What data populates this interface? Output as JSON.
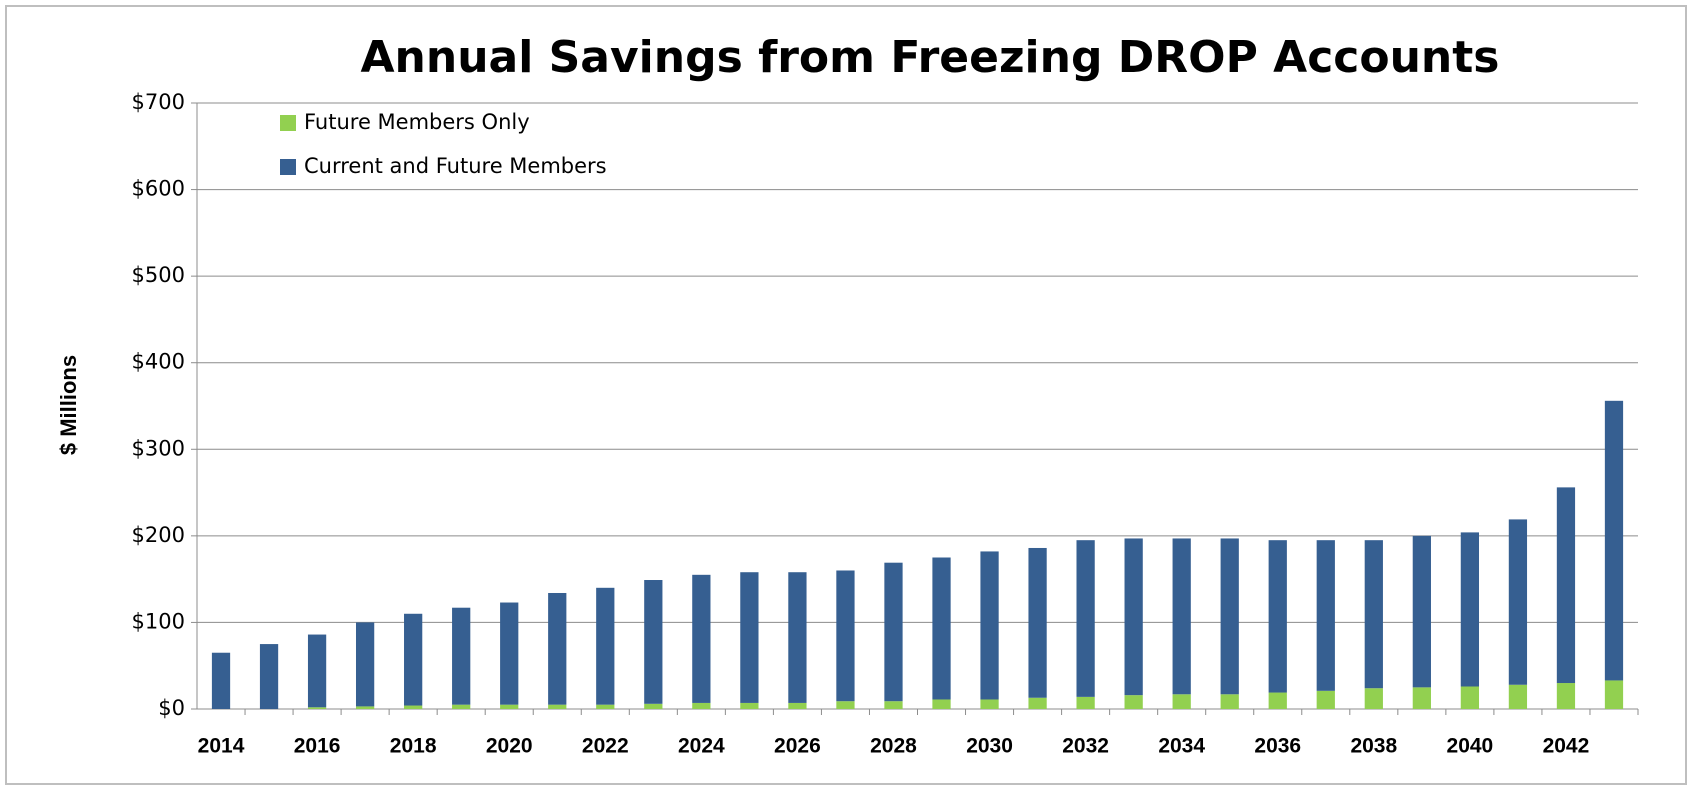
{
  "chart_data": {
    "type": "stacked-bar",
    "title": "Annual Savings from Freezing DROP Accounts",
    "y_label": "$ Millions",
    "categories": [
      "2014",
      null,
      "2016",
      null,
      "2018",
      null,
      "2020",
      null,
      "2022",
      null,
      "2024",
      null,
      "2026",
      null,
      "2028",
      null,
      "2030",
      null,
      "2032",
      null,
      "2034",
      null,
      "2036",
      null,
      "2038",
      null,
      "2040",
      null,
      "2042",
      null
    ],
    "series": [
      {
        "name": "Future Members Only",
        "color": "#92d050",
        "values": [
          0,
          0,
          2,
          3,
          4,
          5,
          5,
          5,
          5,
          6,
          7,
          7,
          7,
          9,
          9,
          11,
          11,
          13,
          14,
          16,
          17,
          17,
          19,
          21,
          24,
          25,
          26,
          28,
          30,
          33
        ]
      },
      {
        "name": "Current and Future Members",
        "color": "#365f91",
        "values": [
          65,
          75,
          84,
          97,
          106,
          112,
          118,
          129,
          135,
          143,
          148,
          151,
          151,
          151,
          160,
          164,
          171,
          173,
          181,
          181,
          180,
          180,
          176,
          174,
          171,
          175,
          178,
          191,
          226,
          323
        ]
      }
    ],
    "ylim": [
      0,
      700
    ],
    "yticks": [
      {
        "value": 0,
        "label": "$0"
      },
      {
        "value": 100,
        "label": "$100"
      },
      {
        "value": 200,
        "label": "$200"
      },
      {
        "value": 300,
        "label": "$300"
      },
      {
        "value": 400,
        "label": "$400"
      },
      {
        "value": 500,
        "label": "$500"
      },
      {
        "value": 600,
        "label": "$600"
      },
      {
        "value": 700,
        "label": "$700"
      }
    ],
    "grid": true,
    "legend": "top-left"
  }
}
